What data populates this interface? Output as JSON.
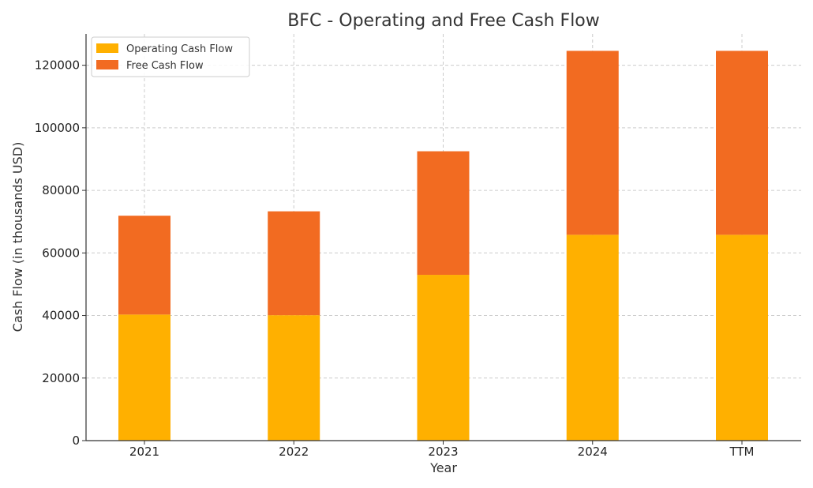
{
  "chart_data": {
    "type": "bar",
    "stacked": true,
    "title": "BFC - Operating and Free Cash Flow",
    "xlabel": "Year",
    "ylabel": "Cash Flow (in thousands USD)",
    "categories": [
      "2021",
      "2022",
      "2023",
      "2024",
      "TTM"
    ],
    "ylim": [
      0,
      130000
    ],
    "yticks": [
      0,
      20000,
      40000,
      60000,
      80000,
      100000,
      120000
    ],
    "grid": true,
    "legend_position": "top-left",
    "series": [
      {
        "name": "Operating Cash Flow",
        "color": "#FFB000",
        "values": [
          40300,
          40100,
          53000,
          65800,
          65800
        ]
      },
      {
        "name": "Free Cash Flow",
        "color": "#F26B21",
        "values": [
          31600,
          33200,
          39500,
          58800,
          58800
        ]
      }
    ]
  }
}
